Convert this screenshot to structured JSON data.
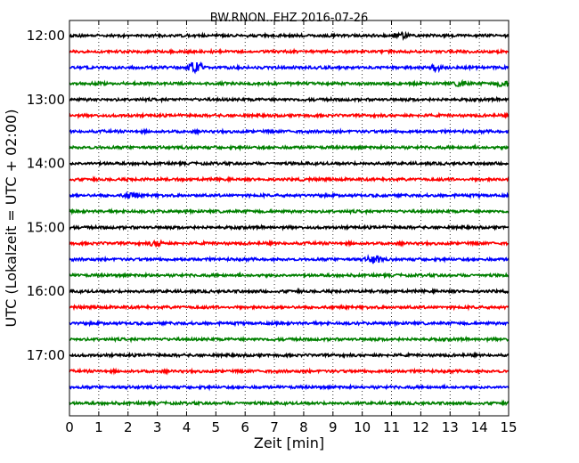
{
  "chart_data": {
    "type": "line",
    "title": "BW.RNON..EHZ 2016-07-26",
    "xlabel": "Zeit  [min]",
    "ylabel": "UTC (Lokalzeit = UTC + 02:00)",
    "xlim": [
      0,
      15
    ],
    "x_ticks": [
      "0",
      "1",
      "2",
      "3",
      "4",
      "5",
      "6",
      "7",
      "8",
      "9",
      "10",
      "11",
      "12",
      "13",
      "14",
      "15"
    ],
    "y_ticks": [
      {
        "label": "12:00",
        "trace": 0
      },
      {
        "label": "13:00",
        "trace": 4
      },
      {
        "label": "14:00",
        "trace": 8
      },
      {
        "label": "15:00",
        "trace": 12
      },
      {
        "label": "16:00",
        "trace": 16
      },
      {
        "label": "17:00",
        "trace": 20
      }
    ],
    "grid": "vertical dotted lines at each minute",
    "trace_colors": [
      "#000000",
      "#ff0000",
      "#0000ff",
      "#008000"
    ],
    "trace_interval_minutes": 15,
    "start_time": "12:00",
    "trace_count": 24,
    "events": [
      {
        "trace": 2,
        "minute": 4.3,
        "amplitude": "large"
      },
      {
        "trace": 2,
        "minute": 12.5,
        "amplitude": "small"
      },
      {
        "trace": 3,
        "minute": 13.4,
        "amplitude": "small"
      },
      {
        "trace": 3,
        "minute": 14.8,
        "amplitude": "small"
      },
      {
        "trace": 10,
        "minute": 2.1,
        "amplitude": "small"
      },
      {
        "trace": 13,
        "minute": 3.0,
        "amplitude": "small"
      },
      {
        "trace": 14,
        "minute": 10.4,
        "amplitude": "medium"
      },
      {
        "trace": 0,
        "minute": 11.3,
        "amplitude": "small"
      }
    ]
  }
}
